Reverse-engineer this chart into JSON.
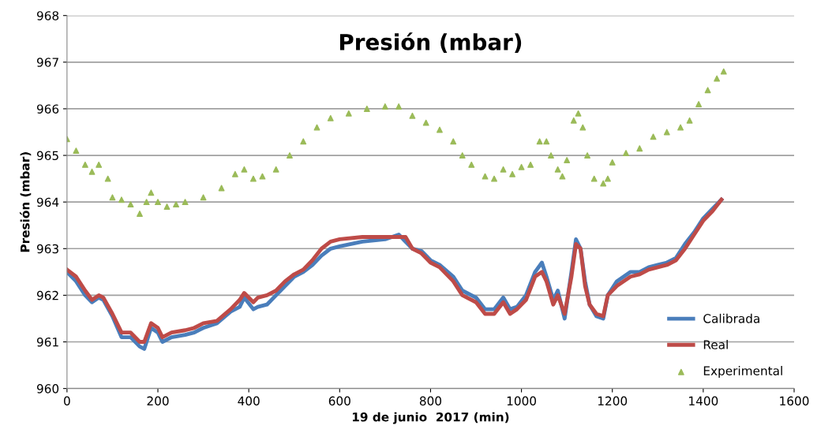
{
  "chart_data": {
    "type": "line",
    "title": "Presión (mbar)",
    "xlabel": "19 de junio  2017 (min)",
    "ylabel": "Presión (mbar)",
    "xlim": [
      0,
      1600
    ],
    "xticks": [
      0,
      200,
      400,
      600,
      800,
      1000,
      1200,
      1400,
      1600
    ],
    "ylim": [
      960,
      968
    ],
    "yticks": [
      960,
      961,
      962,
      963,
      964,
      965,
      966,
      967,
      968
    ],
    "grid": "y",
    "legend": "bottom right",
    "series": [
      {
        "name": "Calibrada",
        "color": "#4a7ebb",
        "x": [
          0,
          20,
          40,
          55,
          70,
          80,
          100,
          120,
          140,
          160,
          170,
          185,
          200,
          210,
          230,
          260,
          280,
          300,
          330,
          360,
          380,
          390,
          410,
          420,
          440,
          460,
          480,
          500,
          520,
          540,
          560,
          580,
          600,
          650,
          700,
          730,
          760,
          780,
          800,
          820,
          850,
          870,
          900,
          920,
          940,
          960,
          975,
          990,
          1010,
          1030,
          1045,
          1055,
          1070,
          1080,
          1095,
          1110,
          1120,
          1130,
          1140,
          1150,
          1165,
          1180,
          1190,
          1210,
          1240,
          1260,
          1280,
          1300,
          1320,
          1340,
          1360,
          1380,
          1400,
          1420,
          1440
        ],
        "values": [
          962.5,
          962.3,
          962.0,
          961.85,
          961.95,
          961.9,
          961.55,
          961.1,
          961.1,
          960.9,
          960.85,
          961.3,
          961.2,
          961.0,
          961.1,
          961.15,
          961.2,
          961.3,
          961.4,
          961.65,
          961.75,
          961.95,
          961.7,
          961.75,
          961.8,
          962.0,
          962.2,
          962.4,
          962.5,
          962.65,
          962.85,
          963.0,
          963.05,
          963.15,
          963.2,
          963.3,
          963.0,
          962.95,
          962.75,
          962.65,
          962.4,
          962.1,
          961.95,
          961.7,
          961.7,
          961.95,
          961.7,
          961.75,
          962.0,
          962.5,
          962.7,
          962.4,
          961.9,
          962.1,
          961.5,
          962.5,
          963.2,
          963.0,
          962.3,
          961.8,
          961.55,
          961.5,
          962.0,
          962.3,
          962.5,
          962.5,
          962.6,
          962.65,
          962.7,
          962.8,
          963.1,
          963.35,
          963.65,
          963.85,
          964.05
        ]
      },
      {
        "name": "Real",
        "color": "#be4b48",
        "x": [
          0,
          20,
          40,
          55,
          70,
          80,
          100,
          120,
          140,
          160,
          170,
          185,
          200,
          210,
          230,
          260,
          280,
          300,
          330,
          360,
          380,
          390,
          410,
          420,
          440,
          460,
          480,
          500,
          520,
          540,
          560,
          580,
          600,
          650,
          700,
          745,
          760,
          780,
          800,
          820,
          850,
          870,
          900,
          920,
          940,
          960,
          975,
          990,
          1010,
          1030,
          1045,
          1055,
          1070,
          1080,
          1095,
          1110,
          1120,
          1130,
          1140,
          1150,
          1165,
          1180,
          1190,
          1210,
          1240,
          1260,
          1280,
          1300,
          1320,
          1340,
          1360,
          1380,
          1400,
          1420,
          1440
        ],
        "values": [
          962.55,
          962.4,
          962.1,
          961.9,
          962.0,
          961.95,
          961.6,
          961.2,
          961.2,
          961.0,
          961.0,
          961.4,
          961.3,
          961.1,
          961.2,
          961.25,
          961.3,
          961.4,
          961.45,
          961.7,
          961.9,
          962.05,
          961.85,
          961.95,
          962.0,
          962.1,
          962.3,
          962.45,
          962.55,
          962.75,
          963.0,
          963.15,
          963.2,
          963.25,
          963.25,
          963.25,
          963.0,
          962.9,
          962.7,
          962.6,
          962.3,
          962.0,
          961.85,
          961.6,
          961.6,
          961.85,
          961.6,
          961.7,
          961.9,
          962.4,
          962.5,
          962.3,
          961.8,
          962.0,
          961.6,
          962.4,
          963.1,
          963.0,
          962.2,
          961.8,
          961.6,
          961.55,
          962.0,
          962.2,
          962.4,
          962.45,
          962.55,
          962.6,
          962.65,
          962.75,
          963.0,
          963.3,
          963.6,
          963.8,
          964.05
        ]
      },
      {
        "name": "Experimental",
        "color": "#9bbb59",
        "type": "scatter",
        "marker": "triangle",
        "x": [
          0,
          20,
          40,
          55,
          70,
          90,
          100,
          120,
          140,
          160,
          175,
          185,
          200,
          220,
          240,
          260,
          300,
          340,
          370,
          390,
          410,
          430,
          460,
          490,
          520,
          550,
          580,
          620,
          660,
          700,
          730,
          760,
          790,
          820,
          850,
          870,
          890,
          920,
          940,
          960,
          980,
          1000,
          1020,
          1040,
          1055,
          1065,
          1080,
          1090,
          1100,
          1115,
          1125,
          1135,
          1145,
          1160,
          1180,
          1190,
          1200,
          1230,
          1260,
          1290,
          1320,
          1350,
          1370,
          1390,
          1410,
          1430,
          1445
        ],
        "values": [
          965.35,
          965.1,
          964.8,
          964.65,
          964.8,
          964.5,
          964.1,
          964.05,
          963.95,
          963.75,
          964.0,
          964.2,
          964.0,
          963.9,
          963.95,
          964.0,
          964.1,
          964.3,
          964.6,
          964.7,
          964.5,
          964.55,
          964.7,
          965.0,
          965.3,
          965.6,
          965.8,
          965.9,
          966.0,
          966.05,
          966.05,
          965.85,
          965.7,
          965.55,
          965.3,
          965.0,
          964.8,
          964.55,
          964.5,
          964.7,
          964.6,
          964.75,
          964.8,
          965.3,
          965.3,
          965.0,
          964.7,
          964.55,
          964.9,
          965.75,
          965.9,
          965.6,
          965.0,
          964.5,
          964.4,
          964.5,
          964.85,
          965.05,
          965.15,
          965.4,
          965.5,
          965.6,
          965.75,
          966.1,
          966.4,
          966.65,
          966.8
        ]
      }
    ]
  }
}
